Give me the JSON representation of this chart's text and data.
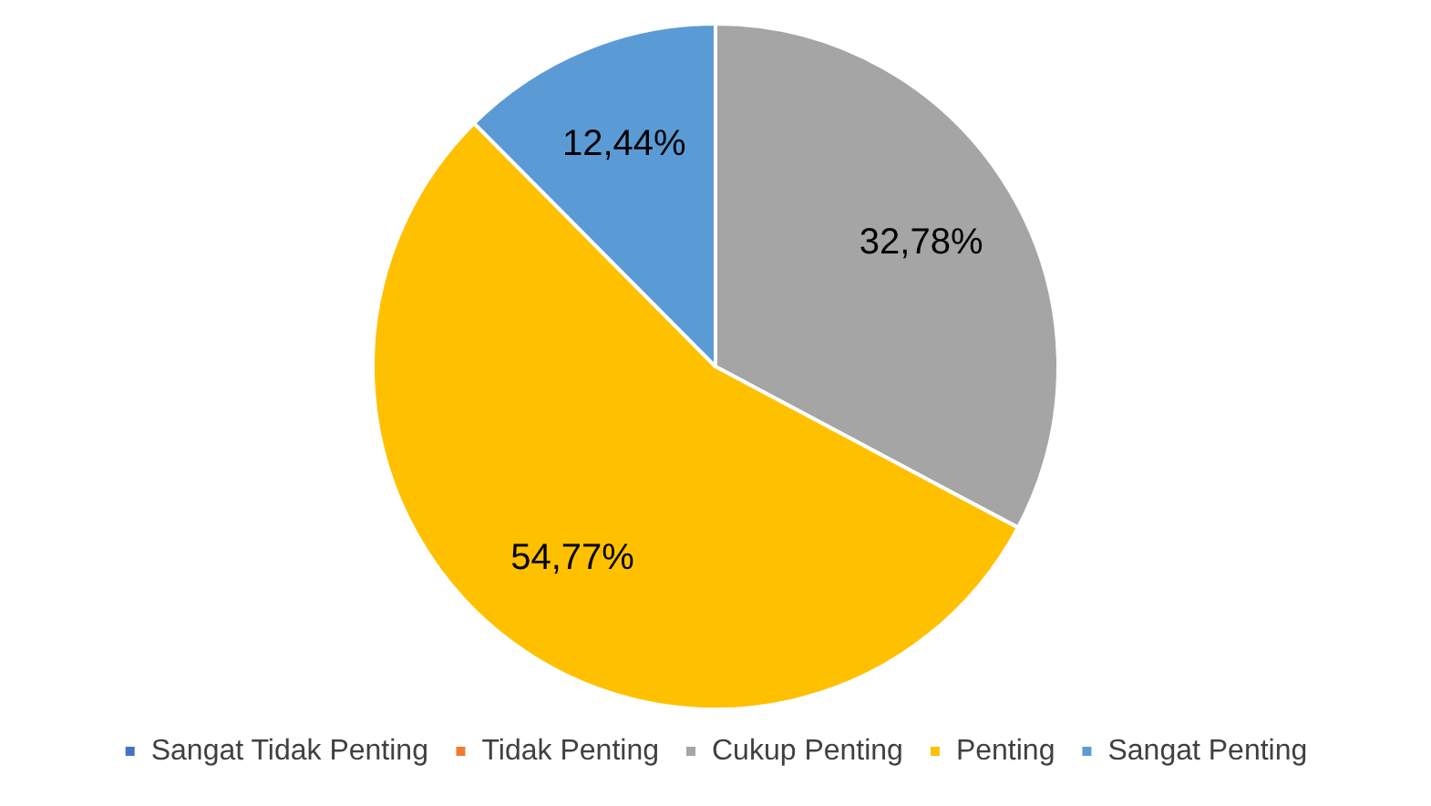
{
  "chart_data": {
    "type": "pie",
    "categories": [
      "Sangat Tidak Penting",
      "Tidak Penting",
      "Cukup Penting",
      "Penting",
      "Sangat Penting"
    ],
    "values": [
      0,
      0,
      32.78,
      54.77,
      12.44
    ],
    "value_labels": [
      null,
      null,
      "32,78%",
      "54,77%",
      "12,44%"
    ],
    "colors": [
      "#4472c4",
      "#ed7d31",
      "#a5a5a5",
      "#ffc000",
      "#5b9bd5"
    ],
    "legend": "bottom"
  }
}
